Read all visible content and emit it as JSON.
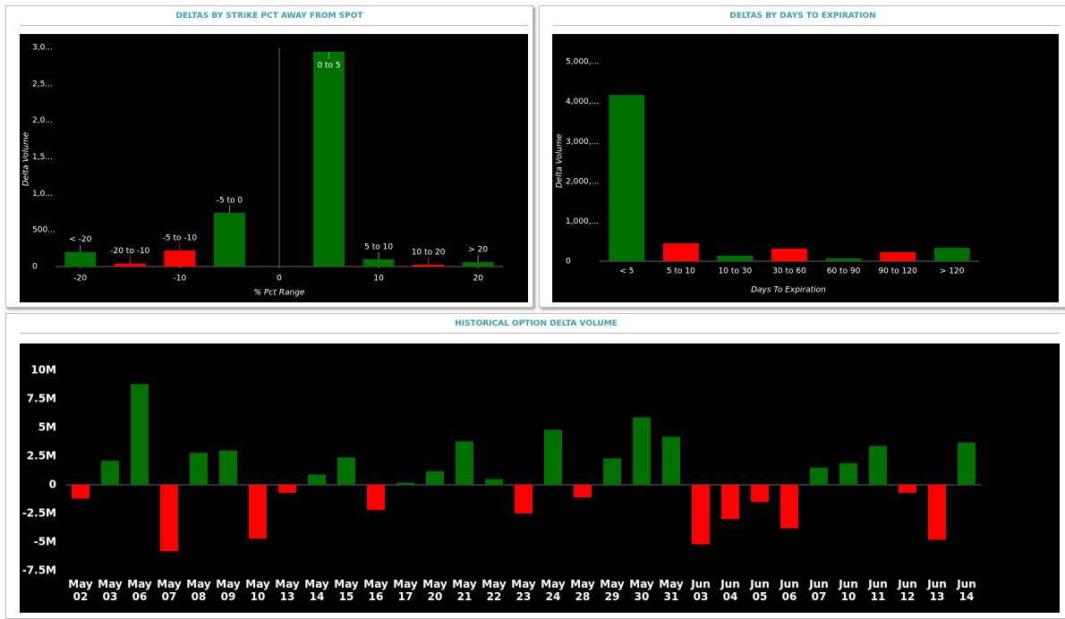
{
  "chart_data": [
    {
      "type": "bar",
      "title": "DELTAS BY STRIKE PCT AWAY FROM SPOT",
      "x_label": "% Pct Range",
      "y_label": "Delta Volume",
      "categories": [
        "< -20",
        "-20 to -10",
        "-5 to -10",
        "-5 to 0",
        "0 to 5",
        "5 to 10",
        "10 to 20",
        "> 20"
      ],
      "x": [
        -20,
        -15,
        -10,
        -5,
        5,
        10,
        15,
        20
      ],
      "values": [
        200,
        40,
        220,
        735,
        2940,
        100,
        25,
        60
      ],
      "colors": [
        "#007000",
        "#ff0000",
        "#ff0000",
        "#007000",
        "#007000",
        "#007000",
        "#ff0000",
        "#007000"
      ],
      "xlim": [
        -22.5,
        22.5
      ],
      "xticks": [
        -20,
        -10,
        0,
        10,
        20
      ],
      "ylim": [
        0,
        3000
      ],
      "yticks": [
        0,
        {
          "value": 500,
          "label": "500..."
        },
        {
          "value": 1000,
          "label": "1,0..."
        },
        {
          "value": 1500,
          "label": "1,5..."
        },
        {
          "value": 2000,
          "label": "2,0..."
        },
        {
          "value": 2500,
          "label": "2,5..."
        },
        {
          "value": 3000,
          "label": "3,0..."
        }
      ]
    },
    {
      "type": "bar",
      "title": "DELTAS BY DAYS TO EXPIRATION",
      "x_label": "Days To Expiration",
      "y_label": "Delta Volume",
      "categories": [
        "< 5",
        "5 to 10",
        "10 to 30",
        "30 to 60",
        "60 to 90",
        "90 to 120",
        "> 120"
      ],
      "values": [
        4170,
        450,
        135,
        315,
        70,
        225,
        335
      ],
      "colors": [
        "#007000",
        "#ff0000",
        "#007000",
        "#ff0000",
        "#007000",
        "#ff0000",
        "#007000"
      ],
      "ylim": [
        0,
        5250
      ],
      "yticks": [
        0,
        {
          "value": 1000,
          "label": "1,000,..."
        },
        {
          "value": 2000,
          "label": "2,000,..."
        },
        {
          "value": 3000,
          "label": "3,000,..."
        },
        {
          "value": 4000,
          "label": "4,000,..."
        },
        {
          "value": 5000,
          "label": "5,000,..."
        }
      ]
    },
    {
      "type": "bar",
      "title": "HISTORICAL OPTION DELTA VOLUME",
      "categories": [
        "May 02",
        "May 03",
        "May 06",
        "May 07",
        "May 08",
        "May 09",
        "May 10",
        "May 13",
        "May 14",
        "May 15",
        "May 16",
        "May 17",
        "May 20",
        "May 21",
        "May 22",
        "May 23",
        "May 24",
        "May 28",
        "May 29",
        "May 30",
        "May 31",
        "Jun 03",
        "Jun 04",
        "Jun 05",
        "Jun 06",
        "Jun 07",
        "Jun 10",
        "Jun 11",
        "Jun 12",
        "Jun 13",
        "Jun 14"
      ],
      "values": [
        -1200000,
        2100000,
        8800000,
        -5800000,
        2800000,
        3000000,
        -4700000,
        -700000,
        900000,
        2400000,
        -2200000,
        200000,
        1200000,
        3800000,
        500000,
        -2500000,
        4800000,
        -1100000,
        2300000,
        5900000,
        4200000,
        -5200000,
        -3000000,
        -1500000,
        -3800000,
        1500000,
        1900000,
        3400000,
        -700000,
        -4800000,
        3700000
      ],
      "positive_color": "#007000",
      "negative_color": "#ff0000",
      "ylim": [
        -8500000,
        11500000
      ],
      "yticks": [
        {
          "value": -7500000,
          "label": "-7.5M"
        },
        {
          "value": -5000000,
          "label": "-5M"
        },
        {
          "value": -2500000,
          "label": "-2.5M"
        },
        0,
        {
          "value": 2500000,
          "label": "2.5M"
        },
        {
          "value": 5000000,
          "label": "5M"
        },
        {
          "value": 7500000,
          "label": "7.5M"
        },
        {
          "value": 10000000,
          "label": "10M"
        }
      ]
    }
  ]
}
